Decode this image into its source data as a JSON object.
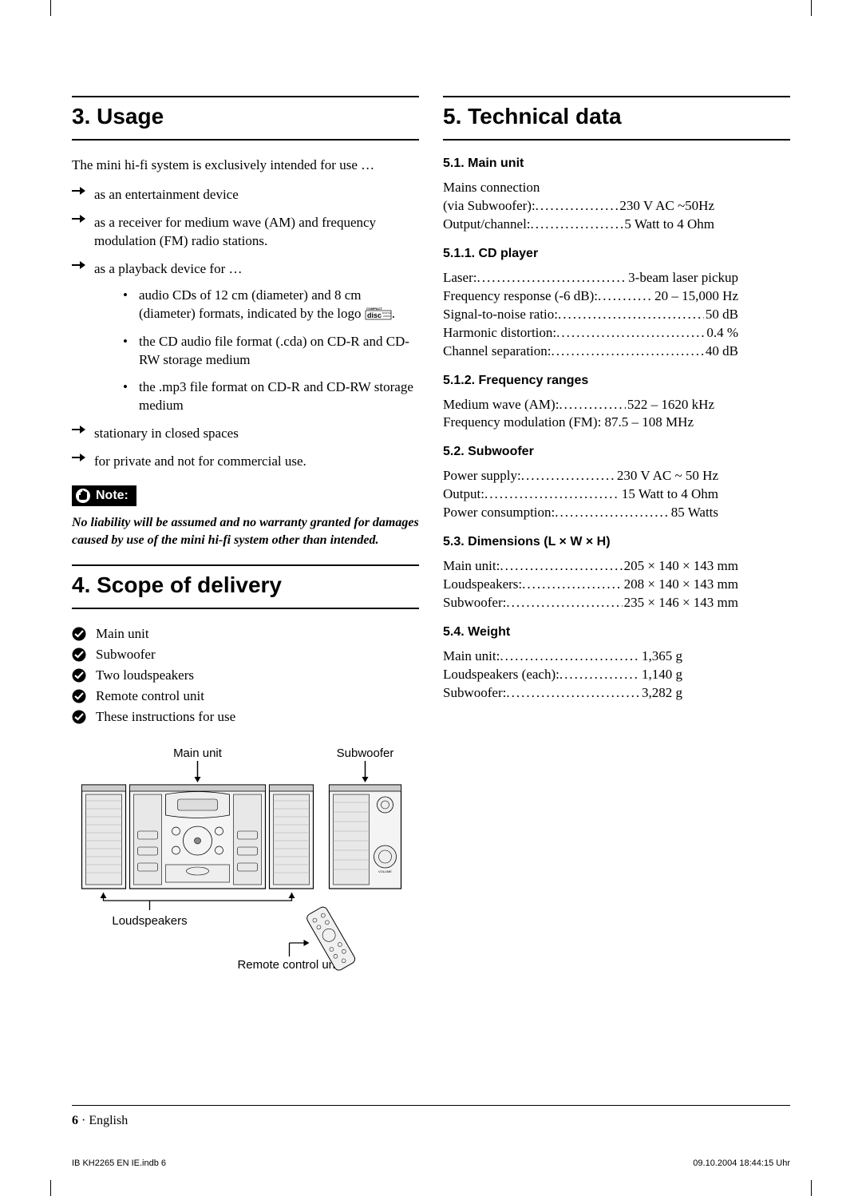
{
  "sections": {
    "usage": {
      "title": "3. Usage",
      "intro": "The mini hi-fi system is exclusively intended for use …",
      "arrow_items": [
        "as an entertainment device",
        "as a receiver for medium wave (AM) and frequency modulation (FM) radio stations.",
        "as a playback device for …",
        "stationary in closed spaces",
        "for private and not for commercial use."
      ],
      "bullet_items": [
        "audio CDs of 12 cm (diameter) and 8 cm (diameter) formats, indicated by the logo ",
        "the CD audio file format (.cda) on CD-R and CD-RW storage medium",
        "the .mp3 file format on CD-R and CD-RW storage medium"
      ],
      "note_label": "Note:",
      "note_text": "No liability will be assumed and no warranty granted for damages caused by use of the mini hi-fi system other than intended."
    },
    "scope": {
      "title": "4. Scope of delivery",
      "items": [
        "Main unit",
        "Subwoofer",
        "Two loudspeakers",
        "Remote control unit",
        "These instructions for use"
      ],
      "diagram_labels": {
        "main_unit": "Main unit",
        "subwoofer": "Subwoofer",
        "loudspeakers": "Loudspeakers",
        "remote": "Remote control unit"
      }
    },
    "tech": {
      "title": "5. Technical data",
      "main_unit": {
        "heading": "5.1. Main unit",
        "mains_label1": "Mains connection",
        "mains_label2": "(via Subwoofer):",
        "mains_value": "230 V AC ~50Hz",
        "output_label": "Output/channel:",
        "output_value": "5 Watt to 4 Ohm"
      },
      "cd_player": {
        "heading": "5.1.1. CD player",
        "rows": [
          {
            "label": "Laser:",
            "value": "3-beam laser pickup"
          },
          {
            "label": "Frequency response  (-6 dB):",
            "value": "20 – 15,000 Hz"
          },
          {
            "label": "Signal-to-noise ratio:",
            "value": "50 dB"
          },
          {
            "label": "Harmonic distortion:",
            "value": "0.4 %"
          },
          {
            "label": "Channel separation:",
            "value": " 40 dB"
          }
        ]
      },
      "freq": {
        "heading": "5.1.2. Frequency ranges",
        "rows": [
          {
            "label": "Medium wave (AM): ",
            "value": "522 – 1620 kHz"
          }
        ],
        "fm_line": "Frequency modulation (FM):   87.5 – 108 MHz"
      },
      "subwoofer": {
        "heading": "5.2. Subwoofer",
        "rows": [
          {
            "label": "Power supply:",
            "value": "230 V AC ~ 50 Hz"
          },
          {
            "label": "Output:",
            "value": "15 Watt to 4 Ohm"
          },
          {
            "label": "Power consumption: ",
            "value": "85 Watts"
          }
        ]
      },
      "dimensions": {
        "heading": "5.3. Dimensions (L × W × H)",
        "rows": [
          {
            "label": "Main unit:",
            "value": "205 × 140 × 143 mm"
          },
          {
            "label": "Loudspeakers: ",
            "value": "208 × 140 × 143 mm"
          },
          {
            "label": "Subwoofer:",
            "value": "235 × 146 × 143 mm"
          }
        ]
      },
      "weight": {
        "heading": "5.4. Weight",
        "rows": [
          {
            "label": "Main unit:",
            "value": "1,365 g"
          },
          {
            "label": "Loudspeakers (each): ",
            "value": "1,140 g"
          },
          {
            "label": "Subwoofer:",
            "value": "3,282 g"
          }
        ]
      }
    }
  },
  "footer": {
    "page_num": "6",
    "bullet": " · ",
    "lang": "English"
  },
  "print_info": {
    "file": "IB KH2265 EN IE.indb   6",
    "timestamp": "09.10.2004   18:44:15 Uhr"
  },
  "colors": {
    "text": "#000000",
    "background": "#ffffff"
  }
}
